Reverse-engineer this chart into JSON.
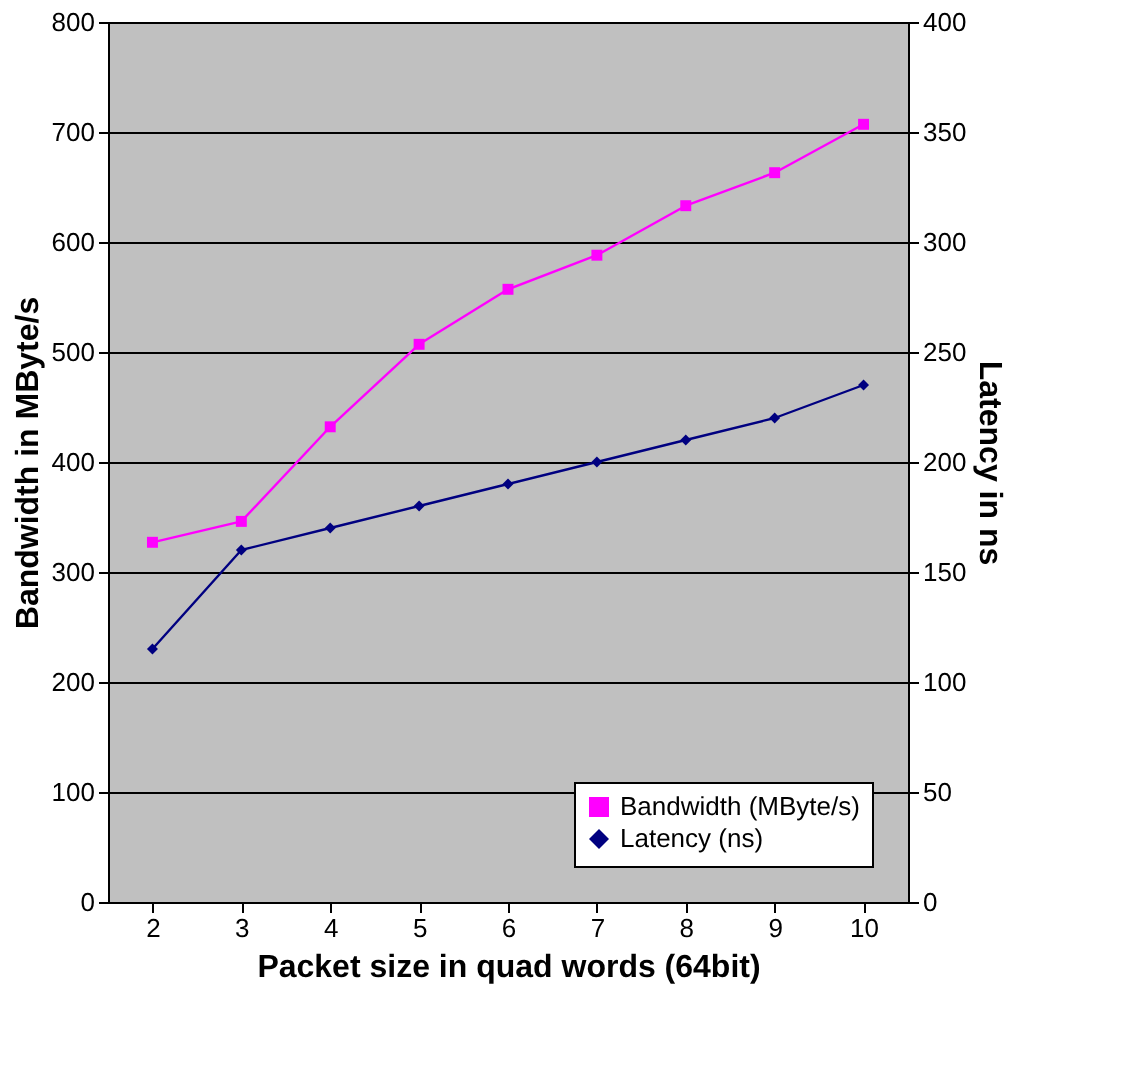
{
  "chart_data": {
    "type": "line",
    "xlabel": "Packet size in quad words (64bit)",
    "ylabel": "Bandwidth in MByte/s",
    "y2label": "Latency in ns",
    "categories": [
      "2",
      "3",
      "4",
      "5",
      "6",
      "7",
      "8",
      "9",
      "10"
    ],
    "series": [
      {
        "name": "Bandwidth (MByte/s)",
        "color": "#ff00ff",
        "marker": "square",
        "values": [
          327,
          346,
          432,
          507,
          557,
          588,
          633,
          663,
          707
        ]
      },
      {
        "name": "Latency (ns)",
        "color": "#000080",
        "marker": "diamond",
        "axis": "y2",
        "values": [
          115,
          160,
          170,
          180,
          190,
          200,
          210,
          220,
          235
        ]
      }
    ],
    "ylim": [
      0,
      800
    ],
    "yticks": [
      0,
      100,
      200,
      300,
      400,
      500,
      600,
      700,
      800
    ],
    "y2lim": [
      0,
      400
    ],
    "y2ticks": [
      0,
      50,
      100,
      150,
      200,
      250,
      300,
      350,
      400
    ],
    "grid": "y",
    "legend": "bottom right"
  }
}
